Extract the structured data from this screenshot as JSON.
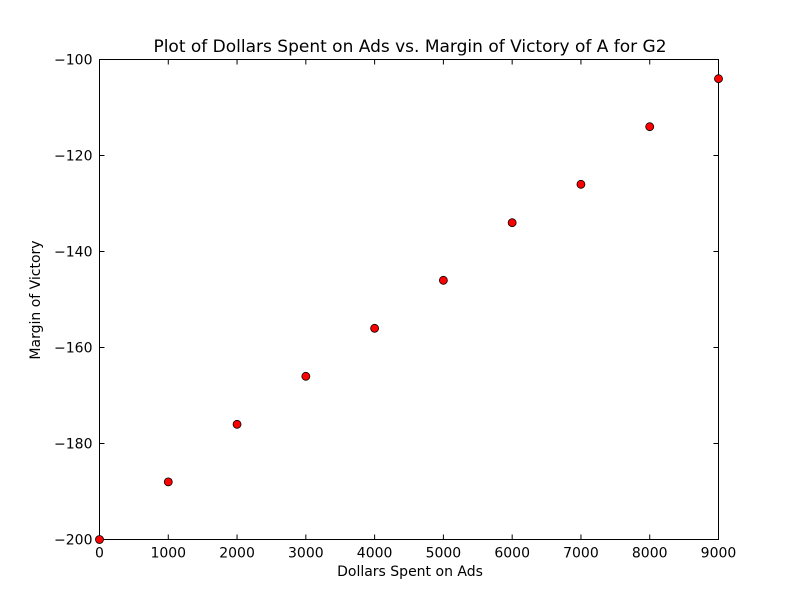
{
  "chart_data": {
    "type": "scatter",
    "title": "Plot of Dollars Spent on Ads vs. Margin of Victory of A for G2",
    "xlabel": "Dollars Spent on Ads",
    "ylabel": "Margin of Victory",
    "xlim": [
      0,
      9000
    ],
    "ylim": [
      -200,
      -100
    ],
    "xticks": [
      0,
      1000,
      2000,
      3000,
      4000,
      5000,
      6000,
      7000,
      8000,
      9000
    ],
    "yticks": [
      -200,
      -180,
      -160,
      -140,
      -120,
      -100
    ],
    "grid": false,
    "marker_color": "#ff0000",
    "marker_edge_color": "#000000",
    "points": [
      {
        "x": 0,
        "y": -200
      },
      {
        "x": 1000,
        "y": -188
      },
      {
        "x": 2000,
        "y": -176
      },
      {
        "x": 3000,
        "y": -166
      },
      {
        "x": 4000,
        "y": -156
      },
      {
        "x": 5000,
        "y": -146
      },
      {
        "x": 6000,
        "y": -134
      },
      {
        "x": 7000,
        "y": -126
      },
      {
        "x": 8000,
        "y": -114
      },
      {
        "x": 9000,
        "y": -104
      }
    ]
  }
}
